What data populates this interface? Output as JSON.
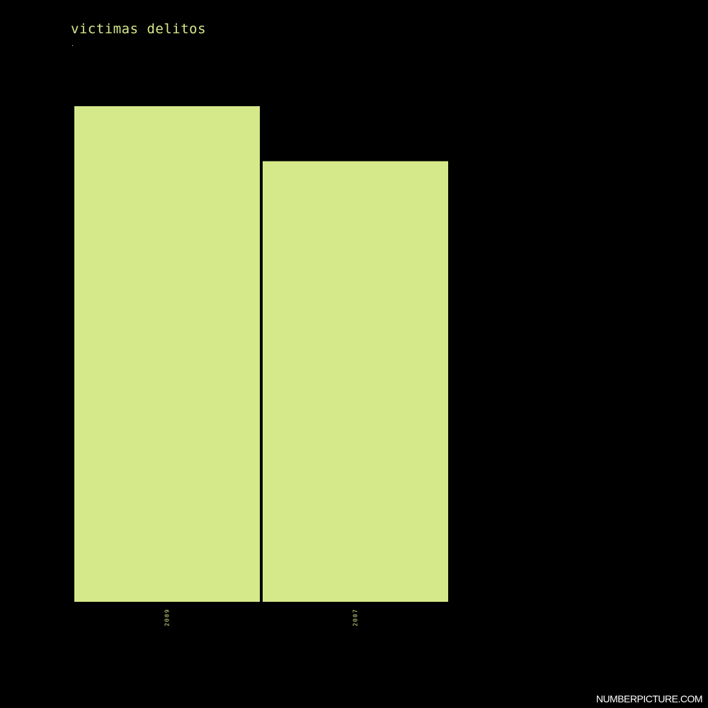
{
  "chart_data": {
    "type": "bar",
    "title": "victimas delitos",
    "subtitle": ".",
    "categories": [
      "2009",
      "2007"
    ],
    "values": [
      100,
      88.9
    ],
    "ylim": [
      0,
      100
    ],
    "grid": false,
    "bar_color": "#d6e98a",
    "label_color": "#d6e98a",
    "background": "#000000"
  },
  "watermark": "NUMBERPICTURE.COM"
}
